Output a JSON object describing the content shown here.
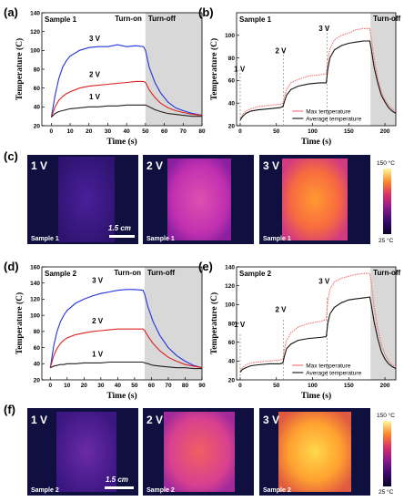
{
  "panel_labels": [
    "(a)",
    "(b)",
    "(c)",
    "(d)",
    "(e)",
    "(f)"
  ],
  "colors": {
    "v3": "#2233dd",
    "v2": "#dd2222",
    "v1": "#222222",
    "max": "#f07070",
    "avg": "#111111",
    "shade": "#d8d8d8"
  },
  "chart_data": [
    {
      "id": "a",
      "type": "line",
      "title": "Sample 1",
      "xlabel": "Time (s)",
      "ylabel": "Temperature (C)",
      "xlim": [
        -5,
        80
      ],
      "ylim": [
        20,
        140
      ],
      "xticks": [
        0,
        10,
        20,
        30,
        40,
        50,
        60,
        70,
        80
      ],
      "yticks": [
        20,
        40,
        60,
        80,
        100,
        120,
        140
      ],
      "turn_on_label": "Turn-on",
      "turn_off_label": "Turn-off",
      "turn_off_start": 50,
      "series": [
        {
          "name": "3 V",
          "color": "#2233dd",
          "x": [
            0,
            2,
            4,
            6,
            8,
            10,
            15,
            20,
            25,
            30,
            35,
            40,
            45,
            49,
            50,
            52,
            55,
            58,
            62,
            66,
            70,
            75,
            80
          ],
          "y": [
            29,
            52,
            70,
            82,
            89,
            94,
            100,
            103,
            104,
            104,
            106,
            104,
            105,
            104,
            100,
            82,
            66,
            55,
            45,
            39,
            36,
            33,
            31
          ]
        },
        {
          "name": "2 V",
          "color": "#dd2222",
          "x": [
            0,
            2,
            4,
            6,
            8,
            10,
            15,
            20,
            25,
            30,
            35,
            40,
            45,
            49,
            50,
            52,
            55,
            58,
            62,
            66,
            70,
            75,
            80
          ],
          "y": [
            29,
            40,
            47,
            51,
            54,
            56,
            60,
            62,
            63,
            64,
            65,
            66,
            67,
            67,
            66,
            58,
            50,
            44,
            39,
            36,
            34,
            32,
            31
          ]
        },
        {
          "name": "1 V",
          "color": "#222222",
          "x": [
            0,
            2,
            4,
            6,
            8,
            10,
            15,
            20,
            25,
            30,
            35,
            40,
            45,
            49,
            50,
            52,
            55,
            58,
            62,
            66,
            70,
            75,
            80
          ],
          "y": [
            29,
            33,
            35,
            36,
            37,
            38,
            39,
            40,
            40,
            41,
            41,
            42,
            42,
            42,
            42,
            40,
            37,
            35,
            33,
            32,
            31,
            30,
            30
          ]
        }
      ],
      "series_labels": [
        {
          "text": "3 V",
          "x": 23,
          "y": 110
        },
        {
          "text": "2 V",
          "x": 23,
          "y": 72
        },
        {
          "text": "1 V",
          "x": 23,
          "y": 48
        }
      ]
    },
    {
      "id": "b",
      "type": "line",
      "title": "Sample 1",
      "xlabel": "Time (s)",
      "ylabel": "Temperature (C)",
      "xlim": [
        -5,
        215
      ],
      "ylim": [
        20,
        120
      ],
      "xticks": [
        0,
        50,
        100,
        150,
        200
      ],
      "yticks": [
        20,
        40,
        60,
        80,
        100
      ],
      "turn_off_label": "Turn-off",
      "turn_off_start": 180,
      "step_times": [
        0,
        60,
        120
      ],
      "step_labels": [
        {
          "text": "1 V",
          "x": -1,
          "y": 68
        },
        {
          "text": "2 V",
          "x": 56,
          "y": 84
        },
        {
          "text": "3 V",
          "x": 116,
          "y": 104
        }
      ],
      "legend": [
        "Max temperature",
        "Average temperature"
      ],
      "series": [
        {
          "name": "Max temperature",
          "color": "#f07070",
          "x": [
            0,
            3,
            8,
            15,
            25,
            40,
            55,
            59,
            61,
            64,
            70,
            80,
            95,
            110,
            119,
            121,
            124,
            130,
            140,
            150,
            160,
            170,
            179,
            181,
            185,
            190,
            195,
            200,
            205,
            210,
            215
          ],
          "y": [
            25,
            30,
            33,
            35,
            37,
            38,
            39,
            40,
            45,
            52,
            58,
            61,
            64,
            65,
            66,
            78,
            88,
            96,
            100,
            102,
            105,
            106,
            106,
            98,
            80,
            62,
            50,
            43,
            38,
            35,
            33
          ]
        },
        {
          "name": "Average temperature",
          "color": "#111111",
          "x": [
            0,
            3,
            8,
            15,
            25,
            40,
            55,
            59,
            61,
            64,
            70,
            80,
            95,
            110,
            119,
            121,
            124,
            130,
            140,
            150,
            160,
            170,
            179,
            181,
            185,
            190,
            195,
            200,
            205,
            210,
            215
          ],
          "y": [
            25,
            28,
            31,
            33,
            34,
            35,
            36,
            37,
            41,
            47,
            52,
            55,
            57,
            58,
            58,
            70,
            80,
            87,
            91,
            93,
            94,
            95,
            95,
            88,
            72,
            58,
            47,
            41,
            36,
            33,
            31
          ]
        }
      ]
    },
    {
      "id": "d",
      "type": "line",
      "title": "Sample 2",
      "xlabel": "Time (s)",
      "ylabel": "Temperature (C)",
      "xlim": [
        -5,
        90
      ],
      "ylim": [
        20,
        160
      ],
      "xticks": [
        0,
        10,
        20,
        30,
        40,
        50,
        60,
        70,
        80,
        90
      ],
      "yticks": [
        20,
        40,
        60,
        80,
        100,
        120,
        140,
        160
      ],
      "turn_on_label": "Turn-on",
      "turn_off_label": "Turn-off",
      "turn_off_start": 56,
      "series": [
        {
          "name": "3 V",
          "color": "#2233dd",
          "x": [
            0,
            2,
            4,
            6,
            8,
            10,
            15,
            20,
            25,
            30,
            35,
            40,
            45,
            50,
            55,
            56,
            58,
            61,
            65,
            70,
            75,
            80,
            85,
            90
          ],
          "y": [
            35,
            62,
            80,
            92,
            100,
            106,
            115,
            120,
            124,
            127,
            129,
            131,
            132,
            132,
            131,
            126,
            110,
            92,
            75,
            60,
            50,
            43,
            38,
            35
          ]
        },
        {
          "name": "2 V",
          "color": "#dd2222",
          "x": [
            0,
            2,
            4,
            6,
            8,
            10,
            15,
            20,
            25,
            30,
            35,
            40,
            45,
            50,
            55,
            56,
            58,
            61,
            65,
            70,
            75,
            80,
            85,
            90
          ],
          "y": [
            35,
            50,
            59,
            65,
            69,
            72,
            76,
            78,
            80,
            81,
            82,
            83,
            83,
            83,
            83,
            81,
            74,
            65,
            56,
            48,
            43,
            39,
            37,
            35
          ]
        },
        {
          "name": "1 V",
          "color": "#222222",
          "x": [
            0,
            2,
            4,
            6,
            8,
            10,
            15,
            20,
            25,
            30,
            35,
            40,
            45,
            50,
            55,
            56,
            58,
            61,
            65,
            70,
            75,
            80,
            85,
            90
          ],
          "y": [
            35,
            37,
            38,
            39,
            39,
            40,
            40,
            41,
            41,
            41,
            42,
            42,
            42,
            42,
            42,
            41,
            40,
            38,
            37,
            36,
            35,
            35,
            34,
            34
          ]
        }
      ],
      "series_labels": [
        {
          "text": "3 V",
          "x": 28,
          "y": 140
        },
        {
          "text": "2 V",
          "x": 28,
          "y": 90
        },
        {
          "text": "1 V",
          "x": 28,
          "y": 49
        }
      ]
    },
    {
      "id": "e",
      "type": "line",
      "title": "Sample 2",
      "xlabel": "Time (s)",
      "ylabel": "Temperature (C)",
      "xlim": [
        -5,
        215
      ],
      "ylim": [
        20,
        140
      ],
      "xticks": [
        0,
        50,
        100,
        150,
        200
      ],
      "yticks": [
        20,
        40,
        60,
        80,
        100,
        120,
        140
      ],
      "turn_off_label": "Turn-off",
      "turn_off_start": 180,
      "step_times": [
        0,
        60,
        120
      ],
      "step_labels": [
        {
          "text": "1 V",
          "x": -1,
          "y": 76
        },
        {
          "text": "2 V",
          "x": 56,
          "y": 92
        },
        {
          "text": "3 V",
          "x": 116,
          "y": 122
        }
      ],
      "legend": [
        "Max temperature",
        "Average temperature"
      ],
      "series": [
        {
          "name": "Max temperature",
          "color": "#f07070",
          "x": [
            0,
            3,
            8,
            15,
            25,
            40,
            55,
            59,
            61,
            64,
            70,
            80,
            95,
            110,
            119,
            121,
            124,
            130,
            140,
            150,
            160,
            170,
            179,
            181,
            185,
            190,
            195,
            200,
            205,
            210,
            215
          ],
          "y": [
            30,
            33,
            36,
            38,
            39,
            40,
            41,
            42,
            52,
            62,
            70,
            76,
            80,
            82,
            84,
            104,
            116,
            124,
            128,
            130,
            132,
            133,
            133,
            124,
            98,
            75,
            58,
            47,
            40,
            36,
            34
          ]
        },
        {
          "name": "Average temperature",
          "color": "#111111",
          "x": [
            0,
            3,
            8,
            15,
            25,
            40,
            55,
            59,
            61,
            64,
            70,
            80,
            95,
            110,
            119,
            121,
            124,
            130,
            140,
            150,
            160,
            170,
            179,
            181,
            185,
            190,
            195,
            200,
            205,
            210,
            215
          ],
          "y": [
            28,
            31,
            33,
            35,
            36,
            37,
            37,
            38,
            45,
            53,
            58,
            62,
            64,
            65,
            66,
            80,
            90,
            97,
            102,
            105,
            106,
            107,
            108,
            100,
            82,
            64,
            50,
            42,
            37,
            34,
            32
          ]
        }
      ]
    }
  ],
  "thermal_c": {
    "sample": "Sample 1",
    "panels": [
      "1 V",
      "2 V",
      "3 V"
    ],
    "scale_bar": "1.5 cm",
    "colorbar_top": "150 °C",
    "colorbar_bottom": "25 °C"
  },
  "thermal_f": {
    "sample": "Sample 2",
    "panels": [
      "1 V",
      "2 V",
      "3 V"
    ],
    "scale_bar": "1.5 cm",
    "colorbar_top": "150 °C",
    "colorbar_bottom": "25 °C"
  }
}
